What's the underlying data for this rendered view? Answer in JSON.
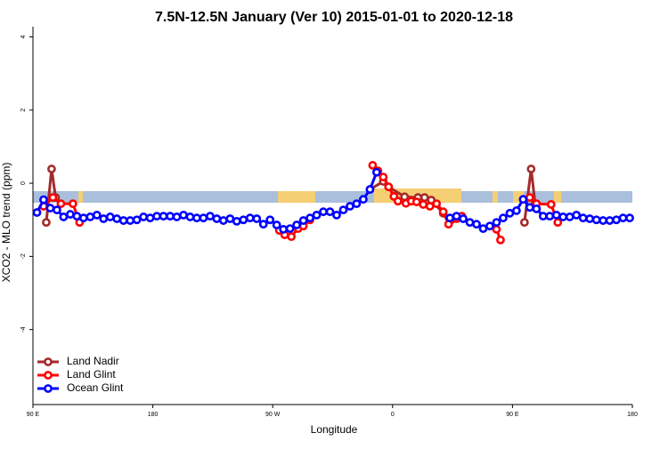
{
  "chart_data": {
    "type": "line",
    "title": "7.5N-12.5N January (Ver 10)   2015-01-01 to 2020-12-18",
    "x_label": "Longitude",
    "y_label": "XCO2 - MLO trend (ppm)",
    "xlim": [
      90,
      540
    ],
    "xticks": [
      {
        "value": 90,
        "label": "90 E"
      },
      180,
      {
        "value": 270,
        "label": "90 W"
      },
      {
        "value": 360,
        "label": "0"
      },
      {
        "value": 450,
        "label": "90 E"
      },
      {
        "value": 540,
        "label": "180"
      }
    ],
    "ylim": [
      -6.05,
      4.28
    ],
    "yticks": [
      -4,
      -2,
      0,
      2,
      4
    ],
    "legend": "bottom-left",
    "series": [
      {
        "name": "Land Nadir",
        "color": "#a52a2a",
        "x": [
          100,
          104,
          107,
          null,
          343,
          353,
          357,
          369,
          379,
          384,
          389,
          398,
          404,
          null,
          459,
          464,
          467
        ],
        "values": [
          -1.07,
          0.39,
          -0.39,
          null,
          -0.17,
          0.05,
          -0.1,
          -0.37,
          -0.39,
          -0.39,
          -0.46,
          -0.82,
          -1.0,
          null,
          -1.07,
          0.39,
          -0.56
        ]
      },
      {
        "name": "Land Glint",
        "color": "#ff0000",
        "x": [
          98,
          105,
          111,
          120,
          125,
          null,
          275,
          279,
          284,
          289,
          293,
          298,
          null,
          345,
          349,
          353,
          357,
          361,
          364,
          370,
          374,
          378,
          383,
          388,
          393,
          398,
          402,
          408,
          412,
          null,
          438,
          441,
          null,
          463,
          468,
          479,
          484
        ],
        "values": [
          -0.63,
          -0.39,
          -0.56,
          -0.56,
          -1.07,
          null,
          -1.29,
          -1.41,
          -1.46,
          -1.24,
          -1.17,
          -1.0,
          null,
          0.49,
          0.34,
          0.17,
          -0.1,
          -0.36,
          -0.49,
          -0.55,
          -0.49,
          -0.51,
          -0.58,
          -0.63,
          -0.56,
          -0.78,
          -1.12,
          -0.97,
          -0.9,
          null,
          -1.26,
          -1.55,
          null,
          -0.39,
          -0.56,
          -0.58,
          -1.07
        ]
      },
      {
        "name": "Ocean Glint",
        "color": "#0000ff",
        "x": [
          93,
          98,
          103,
          108,
          113,
          118,
          123,
          128,
          133,
          138,
          143,
          148,
          153,
          158,
          163,
          168,
          173,
          178,
          183,
          188,
          193,
          198,
          203,
          208,
          213,
          218,
          223,
          228,
          233,
          238,
          243,
          248,
          253,
          258,
          263,
          268,
          273,
          278,
          283,
          288,
          293,
          298,
          303,
          308,
          313,
          318,
          323,
          328,
          333,
          338,
          343,
          348,
          null,
          403,
          408,
          413,
          418,
          423,
          428,
          433,
          438,
          443,
          448,
          453,
          458,
          463,
          468,
          473,
          478,
          483,
          488,
          493,
          498,
          503,
          508,
          513,
          518,
          523,
          528,
          533,
          538
        ],
        "values": [
          -0.8,
          -0.45,
          -0.68,
          -0.73,
          -0.92,
          -0.85,
          -0.9,
          -0.95,
          -0.92,
          -0.87,
          -0.97,
          -0.92,
          -0.97,
          -1.02,
          -1.02,
          -1.0,
          -0.92,
          -0.95,
          -0.9,
          -0.9,
          -0.9,
          -0.92,
          -0.87,
          -0.92,
          -0.95,
          -0.95,
          -0.9,
          -0.97,
          -1.02,
          -0.97,
          -1.04,
          -1.0,
          -0.95,
          -0.97,
          -1.12,
          -1.0,
          -1.14,
          -1.26,
          -1.24,
          -1.14,
          -1.02,
          -0.95,
          -0.87,
          -0.78,
          -0.78,
          -0.87,
          -0.73,
          -0.63,
          -0.56,
          -0.44,
          -0.17,
          0.3,
          null,
          -0.95,
          -0.9,
          -0.97,
          -1.07,
          -1.12,
          -1.24,
          -1.17,
          -1.07,
          -0.95,
          -0.82,
          -0.75,
          -0.44,
          -0.66,
          -0.7,
          -0.9,
          -0.9,
          -0.87,
          -0.92,
          -0.92,
          -0.87,
          -0.95,
          -0.97,
          -1.0,
          -1.02,
          -1.02,
          -1.0,
          -0.95,
          -0.95
        ]
      }
    ]
  }
}
